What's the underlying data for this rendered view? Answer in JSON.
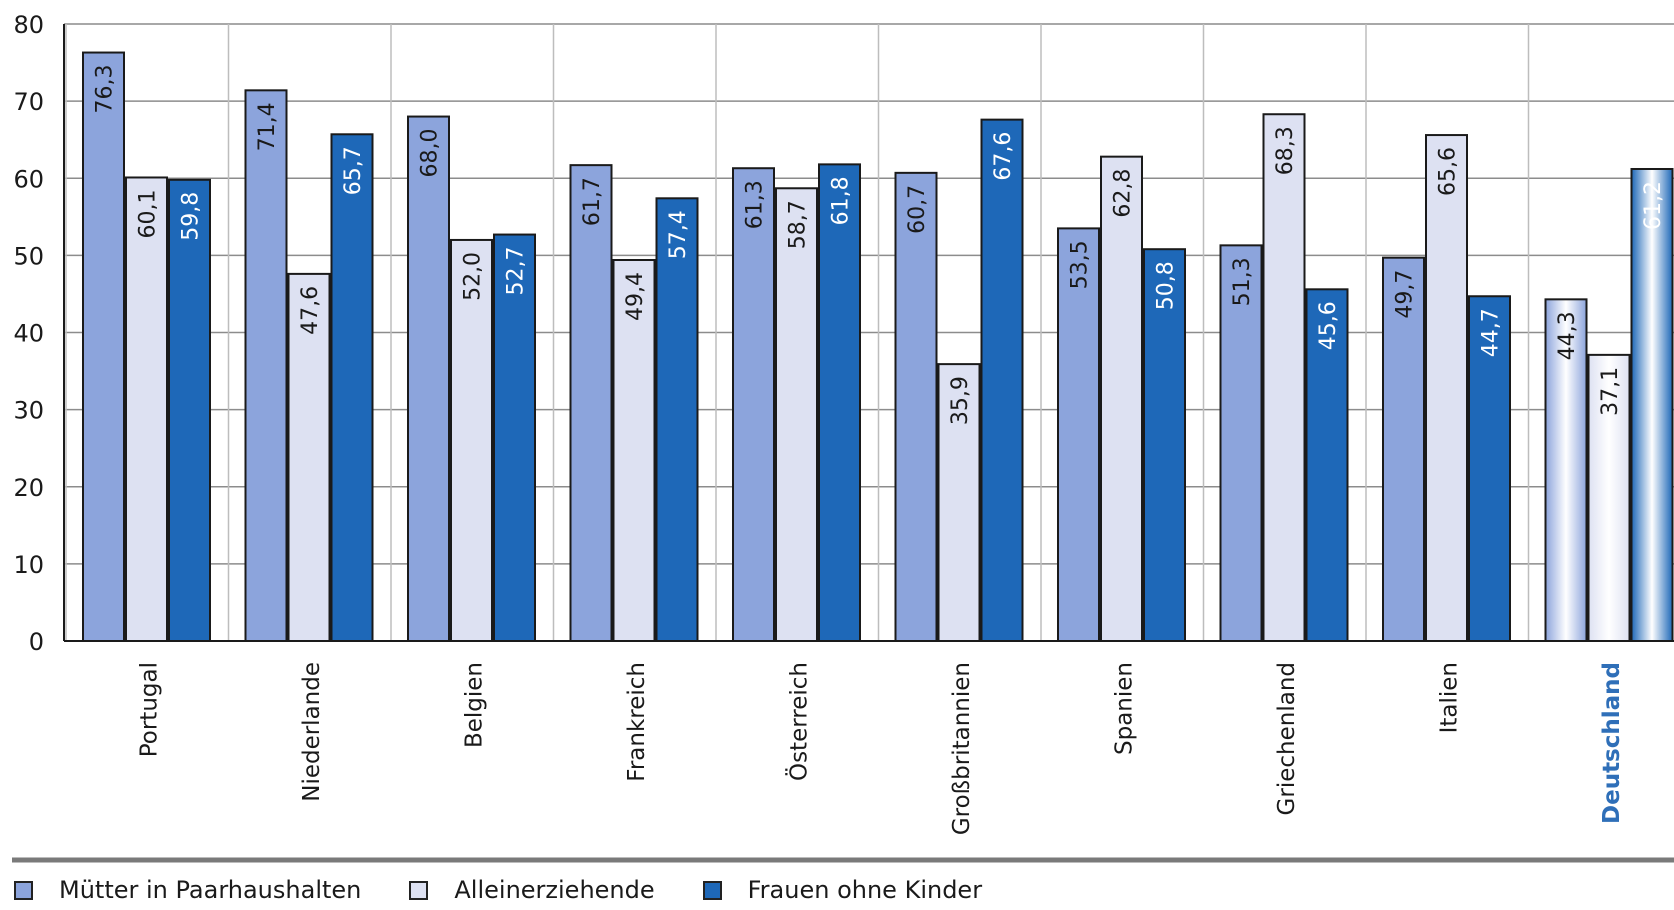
{
  "chart_data": {
    "type": "bar",
    "title": "",
    "xlabel": "",
    "ylabel": "",
    "ylim": [
      0,
      80
    ],
    "yticks": [
      0,
      10,
      20,
      30,
      40,
      50,
      60,
      70,
      80
    ],
    "grid": true,
    "legend_position": "bottom-left",
    "categories": [
      "Portugal",
      "Niederlande",
      "Belgien",
      "Frankreich",
      "Österreich",
      "Großbritannien",
      "Spanien",
      "Griechenland",
      "Italien",
      "Deutschland"
    ],
    "highlight_category": "Deutschland",
    "series": [
      {
        "name": "Mütter in Paarhaushalten",
        "color": "#8ca4dc",
        "values": [
          76.3,
          71.4,
          68.0,
          61.7,
          61.3,
          60.7,
          53.5,
          51.3,
          49.7,
          44.3
        ],
        "labels": [
          "76,3",
          "71,4",
          "68,0",
          "61,7",
          "61,3",
          "60,7",
          "53,5",
          "51,3",
          "49,7",
          "44,3"
        ]
      },
      {
        "name": "Alleinerziehende",
        "color": "#dde1f2",
        "values": [
          60.1,
          47.6,
          52.0,
          49.4,
          58.7,
          35.9,
          62.8,
          68.3,
          65.6,
          37.1
        ],
        "labels": [
          "60,1",
          "47,6",
          "52,0",
          "49,4",
          "58,7",
          "35,9",
          "62,8",
          "68,3",
          "65,6",
          "37,1"
        ]
      },
      {
        "name": "Frauen ohne Kinder",
        "color": "#1e68b8",
        "values": [
          59.8,
          65.7,
          52.7,
          57.4,
          61.8,
          67.6,
          50.8,
          45.6,
          44.7,
          61.2
        ],
        "labels": [
          "59,8",
          "65,7",
          "52,7",
          "57,4",
          "61,8",
          "67,6",
          "50,8",
          "45,6",
          "44,7",
          "61,2"
        ]
      }
    ]
  }
}
